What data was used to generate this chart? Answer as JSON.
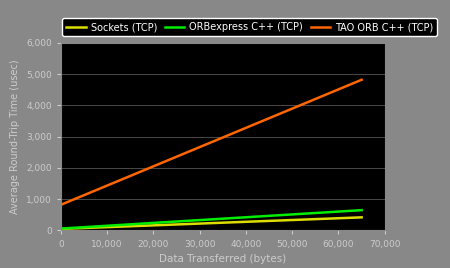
{
  "xlabel": "Data Transferred (bytes)",
  "ylabel": "Average Round-Trip Time (usec)",
  "background_color": "#000000",
  "figure_background_color": "#888888",
  "grid_color": "#555555",
  "xlim": [
    0,
    70000
  ],
  "ylim": [
    0,
    6000
  ],
  "xticks": [
    0,
    10000,
    20000,
    30000,
    40000,
    50000,
    60000,
    70000
  ],
  "xtick_labels": [
    "0",
    "10,000",
    "20,000",
    "30,000",
    "40,000",
    "50,000",
    "60,000",
    "70,000"
  ],
  "yticks": [
    0,
    1000,
    2000,
    3000,
    4000,
    5000,
    6000
  ],
  "ytick_labels": [
    "0",
    "1,000",
    "2,000",
    "3,000",
    "4,000",
    "5,000",
    "6,000"
  ],
  "series": [
    {
      "label": "Sockets (TCP)",
      "color": "#dddd00",
      "x": [
        0,
        65000
      ],
      "y": [
        50,
        420
      ]
    },
    {
      "label": "ORBexpress C++ (TCP)",
      "color": "#00ee00",
      "x": [
        0,
        65000
      ],
      "y": [
        60,
        650
      ]
    },
    {
      "label": "TAO ORB C++ (TCP)",
      "color": "#ff6600",
      "x": [
        0,
        65000
      ],
      "y": [
        820,
        4820
      ]
    }
  ],
  "legend_facecolor": "#000000",
  "legend_edgecolor": "#ffffff",
  "legend_text_color": "#ffffff",
  "tick_color": "#cccccc",
  "label_color": "#cccccc",
  "spine_color": "#888888",
  "linewidth": 1.8
}
